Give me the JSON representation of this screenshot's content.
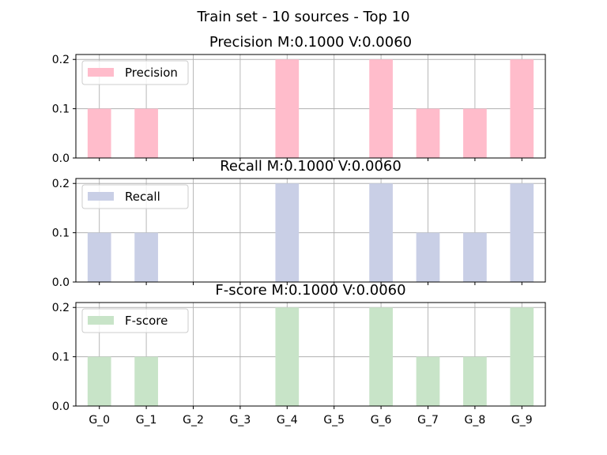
{
  "figure": {
    "title": "Train set - 10 sources - Top 10"
  },
  "chart_data": [
    {
      "type": "bar",
      "title": "Precision M:0.1000 V:0.0060",
      "categories": [
        "G_0",
        "G_1",
        "G_2",
        "G_3",
        "G_4",
        "G_5",
        "G_6",
        "G_7",
        "G_8",
        "G_9"
      ],
      "series": [
        {
          "name": "Precision",
          "values": [
            0.1,
            0.1,
            0.0,
            0.0,
            0.2,
            0.0,
            0.2,
            0.1,
            0.1,
            0.2
          ],
          "color": "#ffbccb"
        }
      ],
      "ylim": [
        0,
        0.21
      ],
      "yticks": [
        "0.0",
        "0.1",
        "0.2"
      ],
      "grid": true,
      "legend": "upper left"
    },
    {
      "type": "bar",
      "title": "Recall M:0.1000 V:0.0060",
      "categories": [
        "G_0",
        "G_1",
        "G_2",
        "G_3",
        "G_4",
        "G_5",
        "G_6",
        "G_7",
        "G_8",
        "G_9"
      ],
      "series": [
        {
          "name": "Recall",
          "values": [
            0.1,
            0.1,
            0.0,
            0.0,
            0.2,
            0.0,
            0.2,
            0.1,
            0.1,
            0.2
          ],
          "color": "#c9cfe6"
        }
      ],
      "ylim": [
        0,
        0.21
      ],
      "yticks": [
        "0.0",
        "0.1",
        "0.2"
      ],
      "grid": true,
      "legend": "upper left"
    },
    {
      "type": "bar",
      "title": "F-score M:0.1000 V:0.0060",
      "categories": [
        "G_0",
        "G_1",
        "G_2",
        "G_3",
        "G_4",
        "G_5",
        "G_6",
        "G_7",
        "G_8",
        "G_9"
      ],
      "series": [
        {
          "name": "F-score",
          "values": [
            0.1,
            0.1,
            0.0,
            0.0,
            0.2,
            0.0,
            0.2,
            0.1,
            0.1,
            0.2
          ],
          "color": "#c8e4c8"
        }
      ],
      "ylim": [
        0,
        0.21
      ],
      "yticks": [
        "0.0",
        "0.1",
        "0.2"
      ],
      "grid": true,
      "legend": "upper left"
    }
  ]
}
